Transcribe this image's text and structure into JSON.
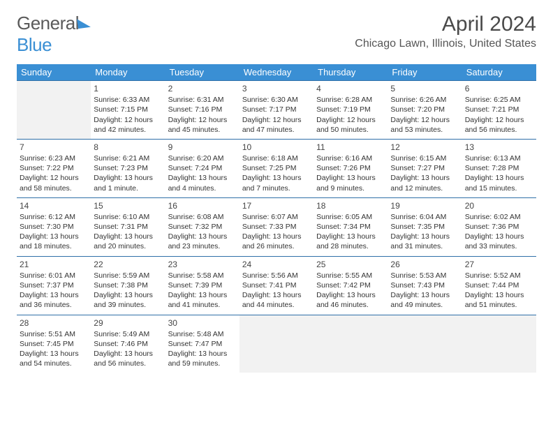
{
  "brand": {
    "word1": "General",
    "word2": "Blue"
  },
  "title": "April 2024",
  "location": "Chicago Lawn, Illinois, United States",
  "colors": {
    "header_bg": "#3a8fd4",
    "header_text": "#ffffff",
    "cell_border": "#2f6fa8",
    "empty_bg": "#f2f2f2",
    "text": "#333333",
    "title_text": "#4a4a4a"
  },
  "day_headers": [
    "Sunday",
    "Monday",
    "Tuesday",
    "Wednesday",
    "Thursday",
    "Friday",
    "Saturday"
  ],
  "weeks": [
    [
      null,
      {
        "n": "1",
        "sunrise": "Sunrise: 6:33 AM",
        "sunset": "Sunset: 7:15 PM",
        "day1": "Daylight: 12 hours",
        "day2": "and 42 minutes."
      },
      {
        "n": "2",
        "sunrise": "Sunrise: 6:31 AM",
        "sunset": "Sunset: 7:16 PM",
        "day1": "Daylight: 12 hours",
        "day2": "and 45 minutes."
      },
      {
        "n": "3",
        "sunrise": "Sunrise: 6:30 AM",
        "sunset": "Sunset: 7:17 PM",
        "day1": "Daylight: 12 hours",
        "day2": "and 47 minutes."
      },
      {
        "n": "4",
        "sunrise": "Sunrise: 6:28 AM",
        "sunset": "Sunset: 7:19 PM",
        "day1": "Daylight: 12 hours",
        "day2": "and 50 minutes."
      },
      {
        "n": "5",
        "sunrise": "Sunrise: 6:26 AM",
        "sunset": "Sunset: 7:20 PM",
        "day1": "Daylight: 12 hours",
        "day2": "and 53 minutes."
      },
      {
        "n": "6",
        "sunrise": "Sunrise: 6:25 AM",
        "sunset": "Sunset: 7:21 PM",
        "day1": "Daylight: 12 hours",
        "day2": "and 56 minutes."
      }
    ],
    [
      {
        "n": "7",
        "sunrise": "Sunrise: 6:23 AM",
        "sunset": "Sunset: 7:22 PM",
        "day1": "Daylight: 12 hours",
        "day2": "and 58 minutes."
      },
      {
        "n": "8",
        "sunrise": "Sunrise: 6:21 AM",
        "sunset": "Sunset: 7:23 PM",
        "day1": "Daylight: 13 hours",
        "day2": "and 1 minute."
      },
      {
        "n": "9",
        "sunrise": "Sunrise: 6:20 AM",
        "sunset": "Sunset: 7:24 PM",
        "day1": "Daylight: 13 hours",
        "day2": "and 4 minutes."
      },
      {
        "n": "10",
        "sunrise": "Sunrise: 6:18 AM",
        "sunset": "Sunset: 7:25 PM",
        "day1": "Daylight: 13 hours",
        "day2": "and 7 minutes."
      },
      {
        "n": "11",
        "sunrise": "Sunrise: 6:16 AM",
        "sunset": "Sunset: 7:26 PM",
        "day1": "Daylight: 13 hours",
        "day2": "and 9 minutes."
      },
      {
        "n": "12",
        "sunrise": "Sunrise: 6:15 AM",
        "sunset": "Sunset: 7:27 PM",
        "day1": "Daylight: 13 hours",
        "day2": "and 12 minutes."
      },
      {
        "n": "13",
        "sunrise": "Sunrise: 6:13 AM",
        "sunset": "Sunset: 7:28 PM",
        "day1": "Daylight: 13 hours",
        "day2": "and 15 minutes."
      }
    ],
    [
      {
        "n": "14",
        "sunrise": "Sunrise: 6:12 AM",
        "sunset": "Sunset: 7:30 PM",
        "day1": "Daylight: 13 hours",
        "day2": "and 18 minutes."
      },
      {
        "n": "15",
        "sunrise": "Sunrise: 6:10 AM",
        "sunset": "Sunset: 7:31 PM",
        "day1": "Daylight: 13 hours",
        "day2": "and 20 minutes."
      },
      {
        "n": "16",
        "sunrise": "Sunrise: 6:08 AM",
        "sunset": "Sunset: 7:32 PM",
        "day1": "Daylight: 13 hours",
        "day2": "and 23 minutes."
      },
      {
        "n": "17",
        "sunrise": "Sunrise: 6:07 AM",
        "sunset": "Sunset: 7:33 PM",
        "day1": "Daylight: 13 hours",
        "day2": "and 26 minutes."
      },
      {
        "n": "18",
        "sunrise": "Sunrise: 6:05 AM",
        "sunset": "Sunset: 7:34 PM",
        "day1": "Daylight: 13 hours",
        "day2": "and 28 minutes."
      },
      {
        "n": "19",
        "sunrise": "Sunrise: 6:04 AM",
        "sunset": "Sunset: 7:35 PM",
        "day1": "Daylight: 13 hours",
        "day2": "and 31 minutes."
      },
      {
        "n": "20",
        "sunrise": "Sunrise: 6:02 AM",
        "sunset": "Sunset: 7:36 PM",
        "day1": "Daylight: 13 hours",
        "day2": "and 33 minutes."
      }
    ],
    [
      {
        "n": "21",
        "sunrise": "Sunrise: 6:01 AM",
        "sunset": "Sunset: 7:37 PM",
        "day1": "Daylight: 13 hours",
        "day2": "and 36 minutes."
      },
      {
        "n": "22",
        "sunrise": "Sunrise: 5:59 AM",
        "sunset": "Sunset: 7:38 PM",
        "day1": "Daylight: 13 hours",
        "day2": "and 39 minutes."
      },
      {
        "n": "23",
        "sunrise": "Sunrise: 5:58 AM",
        "sunset": "Sunset: 7:39 PM",
        "day1": "Daylight: 13 hours",
        "day2": "and 41 minutes."
      },
      {
        "n": "24",
        "sunrise": "Sunrise: 5:56 AM",
        "sunset": "Sunset: 7:41 PM",
        "day1": "Daylight: 13 hours",
        "day2": "and 44 minutes."
      },
      {
        "n": "25",
        "sunrise": "Sunrise: 5:55 AM",
        "sunset": "Sunset: 7:42 PM",
        "day1": "Daylight: 13 hours",
        "day2": "and 46 minutes."
      },
      {
        "n": "26",
        "sunrise": "Sunrise: 5:53 AM",
        "sunset": "Sunset: 7:43 PM",
        "day1": "Daylight: 13 hours",
        "day2": "and 49 minutes."
      },
      {
        "n": "27",
        "sunrise": "Sunrise: 5:52 AM",
        "sunset": "Sunset: 7:44 PM",
        "day1": "Daylight: 13 hours",
        "day2": "and 51 minutes."
      }
    ],
    [
      {
        "n": "28",
        "sunrise": "Sunrise: 5:51 AM",
        "sunset": "Sunset: 7:45 PM",
        "day1": "Daylight: 13 hours",
        "day2": "and 54 minutes."
      },
      {
        "n": "29",
        "sunrise": "Sunrise: 5:49 AM",
        "sunset": "Sunset: 7:46 PM",
        "day1": "Daylight: 13 hours",
        "day2": "and 56 minutes."
      },
      {
        "n": "30",
        "sunrise": "Sunrise: 5:48 AM",
        "sunset": "Sunset: 7:47 PM",
        "day1": "Daylight: 13 hours",
        "day2": "and 59 minutes."
      },
      null,
      null,
      null,
      null
    ]
  ]
}
